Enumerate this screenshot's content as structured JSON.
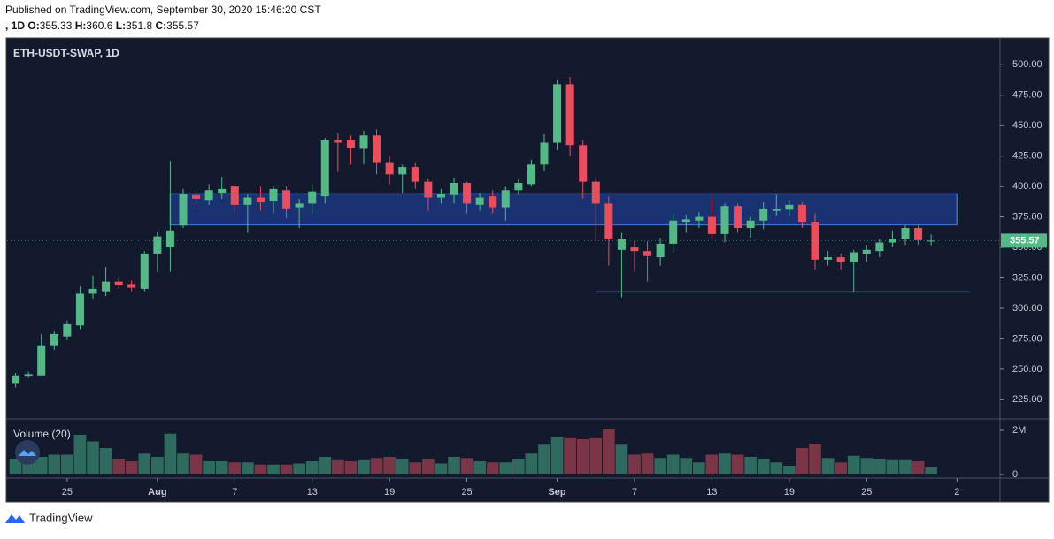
{
  "header": {
    "published": "Published on TradingView.com, September 30, 2020 15:46:20 CST",
    "interval": ", 1D",
    "ohlc_labels": [
      "O:",
      "H:",
      "L:",
      "C:"
    ]
  },
  "footer": "TradingView",
  "chart_data": {
    "type": "candlestick",
    "title": "ETH-USDT-SWAP, 1D",
    "volume_title": "Volume (20)",
    "x": [
      "07-21",
      "07-22",
      "07-23",
      "07-24",
      "07-25",
      "07-26",
      "07-27",
      "07-28",
      "07-29",
      "07-30",
      "07-31",
      "08-01",
      "08-02",
      "08-03",
      "08-04",
      "08-05",
      "08-06",
      "08-07",
      "08-08",
      "08-09",
      "08-10",
      "08-11",
      "08-12",
      "08-13",
      "08-14",
      "08-15",
      "08-16",
      "08-17",
      "08-18",
      "08-19",
      "08-20",
      "08-21",
      "08-22",
      "08-23",
      "08-24",
      "08-25",
      "08-26",
      "08-27",
      "08-28",
      "08-29",
      "08-30",
      "08-31",
      "09-01",
      "09-02",
      "09-03",
      "09-04",
      "09-05",
      "09-06",
      "09-07",
      "09-08",
      "09-09",
      "09-10",
      "09-11",
      "09-12",
      "09-13",
      "09-14",
      "09-15",
      "09-16",
      "09-17",
      "09-18",
      "09-19",
      "09-20",
      "09-21",
      "09-22",
      "09-23",
      "09-24",
      "09-25",
      "09-26",
      "09-27",
      "09-28",
      "09-29",
      "09-30"
    ],
    "open": [
      238,
      244,
      245,
      269,
      277,
      286,
      312,
      314,
      322,
      320,
      316,
      345,
      350,
      368,
      393,
      389,
      395,
      400,
      385,
      391,
      388,
      397,
      383,
      386,
      392,
      438,
      438,
      431,
      442,
      420,
      410,
      416,
      404,
      391,
      393,
      403,
      385,
      392,
      383,
      397,
      402,
      418,
      436,
      484,
      434,
      404,
      386,
      348,
      350,
      347,
      342,
      353,
      371,
      372,
      375,
      361,
      384,
      366,
      372,
      380,
      381,
      385,
      371,
      340,
      342,
      338,
      345,
      347,
      354,
      357,
      366,
      355.33
    ],
    "high": [
      247,
      248,
      279,
      281,
      290,
      318,
      327,
      334,
      325,
      323,
      347,
      363,
      421,
      398,
      398,
      402,
      408,
      402,
      394,
      400,
      400,
      400,
      390,
      402,
      440,
      444,
      442,
      446,
      447,
      425,
      418,
      420,
      406,
      398,
      407,
      404,
      395,
      397,
      400,
      406,
      422,
      443,
      488,
      490,
      438,
      408,
      392,
      362,
      355,
      355,
      358,
      378,
      377,
      379,
      391,
      386,
      386,
      375,
      387,
      393,
      389,
      387,
      378,
      347,
      345,
      348,
      352,
      357,
      364,
      368,
      368,
      360.6
    ],
    "low": [
      235,
      243,
      245,
      266,
      274,
      283,
      308,
      310,
      316,
      314,
      314,
      330,
      330,
      366,
      384,
      385,
      390,
      378,
      362,
      380,
      378,
      374,
      366,
      378,
      386,
      412,
      418,
      418,
      410,
      402,
      395,
      398,
      380,
      386,
      386,
      378,
      380,
      378,
      372,
      393,
      400,
      413,
      430,
      425,
      390,
      355,
      335,
      309,
      330,
      322,
      335,
      346,
      362,
      366,
      358,
      354,
      362,
      358,
      365,
      376,
      376,
      366,
      332,
      335,
      332,
      314,
      338,
      342,
      350,
      352,
      352,
      351.8
    ],
    "close": [
      245,
      246,
      269,
      279,
      287,
      312,
      316,
      322,
      319,
      317,
      345,
      359,
      364,
      394,
      390,
      397,
      398,
      385,
      391,
      387,
      398,
      382,
      386,
      396,
      438,
      436,
      432,
      442,
      420,
      410,
      416,
      404,
      391,
      394,
      403,
      386,
      391,
      383,
      397,
      403,
      418,
      436,
      484,
      434,
      404,
      386,
      357,
      357,
      347,
      343,
      353,
      372,
      373,
      375,
      361,
      384,
      366,
      372,
      382,
      382,
      385,
      371,
      340,
      342,
      338,
      346,
      348,
      354,
      357,
      366,
      356,
      355.57
    ],
    "volume": [
      700000,
      750000,
      800000,
      900000,
      900000,
      1800000,
      1500000,
      1200000,
      700000,
      600000,
      950000,
      800000,
      1850000,
      950000,
      900000,
      600000,
      600000,
      550000,
      550000,
      450000,
      450000,
      450000,
      500000,
      600000,
      800000,
      650000,
      600000,
      650000,
      750000,
      800000,
      700000,
      550000,
      700000,
      500000,
      800000,
      750000,
      600000,
      550000,
      550000,
      700000,
      950000,
      1350000,
      1700000,
      1650000,
      1600000,
      1650000,
      2050000,
      1350000,
      900000,
      950000,
      750000,
      900000,
      750000,
      550000,
      900000,
      950000,
      900000,
      800000,
      700000,
      550000,
      400000,
      1200000,
      1400000,
      750000,
      550000,
      850000,
      750000,
      700000,
      650000,
      650000,
      600000,
      350000
    ],
    "xlim": [
      "07-20",
      "10-05"
    ],
    "xticks": [
      {
        "value": "07-25",
        "label": "25"
      },
      {
        "value": "08-01",
        "label": "Aug"
      },
      {
        "value": "08-07",
        "label": "7"
      },
      {
        "value": "08-13",
        "label": "13"
      },
      {
        "value": "08-19",
        "label": "19"
      },
      {
        "value": "08-25",
        "label": "25"
      },
      {
        "value": "09-01",
        "label": "Sep"
      },
      {
        "value": "09-07",
        "label": "7"
      },
      {
        "value": "09-13",
        "label": "13"
      },
      {
        "value": "09-19",
        "label": "19"
      },
      {
        "value": "09-25",
        "label": "25"
      },
      {
        "value": "10-02",
        "label": "2"
      }
    ],
    "ylim": [
      210,
      522
    ],
    "yticks": [
      {
        "value": 225,
        "label": "225.00"
      },
      {
        "value": 250,
        "label": "250.00"
      },
      {
        "value": 275,
        "label": "275.00"
      },
      {
        "value": 300,
        "label": "300.00"
      },
      {
        "value": 325,
        "label": "325.00"
      },
      {
        "value": 350,
        "label": "350.00"
      },
      {
        "value": 375,
        "label": "375.00"
      },
      {
        "value": 400,
        "label": "400.00"
      },
      {
        "value": 425,
        "label": "425.00"
      },
      {
        "value": 450,
        "label": "450.00"
      },
      {
        "value": 475,
        "label": "475.00"
      },
      {
        "value": 500,
        "label": "500.00"
      }
    ],
    "volume_ylim": [
      0,
      2480000
    ],
    "volume_yticks": [
      0,
      {
        "value": 2000000,
        "label": "2M"
      }
    ],
    "zones": [
      {
        "x": [
          "08-02",
          "10-02"
        ],
        "y": [
          368.6,
          394
        ]
      }
    ],
    "hlines": [
      {
        "x": [
          "09-04",
          "10-03"
        ],
        "y": 313.5
      }
    ],
    "up_color": "#53b987",
    "down_color": "#eb4d5c",
    "volume_up_color": "#2f6a5e",
    "volume_down_color": "#7a3547",
    "zone_color": "#1e3a8a",
    "line_color": "#3d6fd6",
    "grid": false
  }
}
